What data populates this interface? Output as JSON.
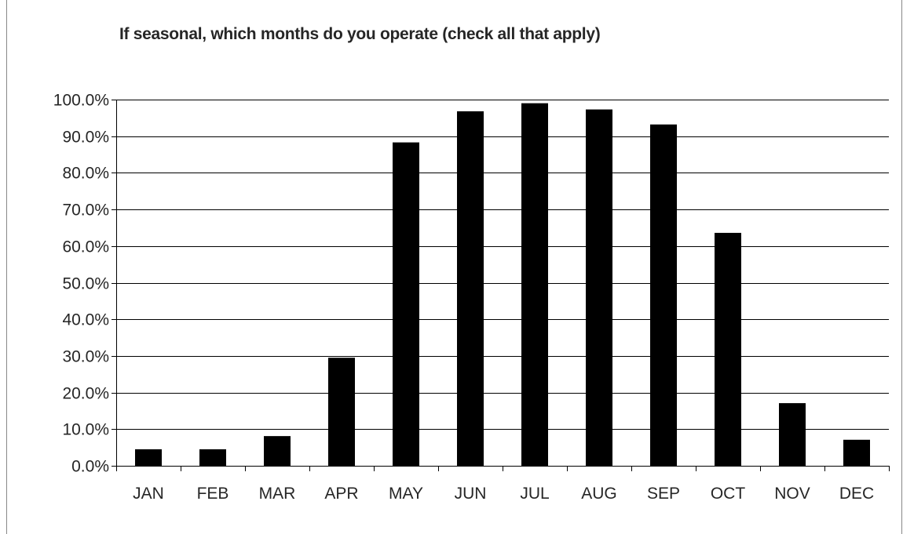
{
  "chart_data": {
    "type": "bar",
    "title": "If seasonal, which months do you operate (check all that apply)",
    "xlabel": "",
    "ylabel": "",
    "categories": [
      "JAN",
      "FEB",
      "MAR",
      "APR",
      "MAY",
      "JUN",
      "JUL",
      "AUG",
      "SEP",
      "OCT",
      "NOV",
      "DEC"
    ],
    "values": [
      4.4,
      4.4,
      8.0,
      29.4,
      88.2,
      96.7,
      98.9,
      97.2,
      93.1,
      63.5,
      17.0,
      7.0
    ],
    "ylim": [
      0,
      100
    ],
    "yticks": [
      0,
      10,
      20,
      30,
      40,
      50,
      60,
      70,
      80,
      90,
      100
    ],
    "ytick_labels": [
      "0.0%",
      "10.0%",
      "20.0%",
      "30.0%",
      "40.0%",
      "50.0%",
      "60.0%",
      "70.0%",
      "80.0%",
      "90.0%",
      "100.0%"
    ],
    "grid": true,
    "legend": "none",
    "bar_color": "#000000"
  }
}
